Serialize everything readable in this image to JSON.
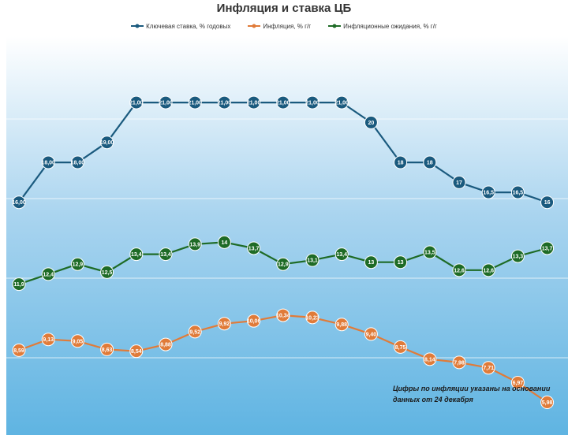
{
  "chart_data": {
    "type": "line",
    "title": "Инфляция и ставка ЦБ",
    "xlabel": "",
    "ylabel": "",
    "grid": true,
    "legend_position": "top",
    "series": [
      {
        "name": "Ключевая ставка, % годовых",
        "color": "#1a5a7e",
        "values": [
          16,
          18,
          18,
          19,
          21,
          21,
          21,
          21,
          21,
          21,
          21,
          21,
          20,
          18,
          18,
          17,
          16.5,
          16.5,
          16
        ],
        "labels": [
          "16,00",
          "18,00",
          "18,00",
          "19,00",
          "21,00",
          "21,00",
          "21,00",
          "21,00",
          "21,00",
          "21,00",
          "21,00",
          "21,00",
          "20",
          "18",
          "18",
          "17",
          "16,5",
          "16,5",
          "16"
        ]
      },
      {
        "name": "Инфляция, % г/г",
        "color": "#e07b39",
        "values": [
          8.59,
          9.13,
          9.05,
          8.63,
          8.54,
          8.88,
          9.52,
          9.92,
          10.06,
          10.34,
          10.23,
          9.88,
          9.4,
          8.75,
          8.14,
          7.98,
          7.71,
          6.97,
          5.98
        ],
        "labels": [
          "8,59",
          "9,13",
          "9,05",
          "8,63",
          "8,54",
          "8,88",
          "9,52",
          "9,92",
          "10,06",
          "10,34",
          "10,23",
          "9,88",
          "9,40",
          "8,75",
          "8,14",
          "7,98",
          "7,71",
          "6,97",
          "5,98"
        ]
      },
      {
        "name": "Инфляционные ожидания, % г/г",
        "color": "#1e6b26",
        "values": [
          11.9,
          12.4,
          12.9,
          12.5,
          13.4,
          13.4,
          13.9,
          14,
          13.7,
          12.9,
          13.1,
          13.4,
          13,
          13,
          13.5,
          12.6,
          12.6,
          13.3,
          13.7
        ],
        "labels": [
          "11,9",
          "12,4",
          "12,9",
          "12,5",
          "13,4",
          "13,4",
          "13,9",
          "14",
          "13,7",
          "12,9",
          "13,1",
          "13,4",
          "13",
          "13",
          "13,5",
          "12,6",
          "12,6",
          "13,3",
          "13,7"
        ]
      }
    ]
  },
  "note": "Цифры по инфляции указаны на основании данных от 24 декабря"
}
